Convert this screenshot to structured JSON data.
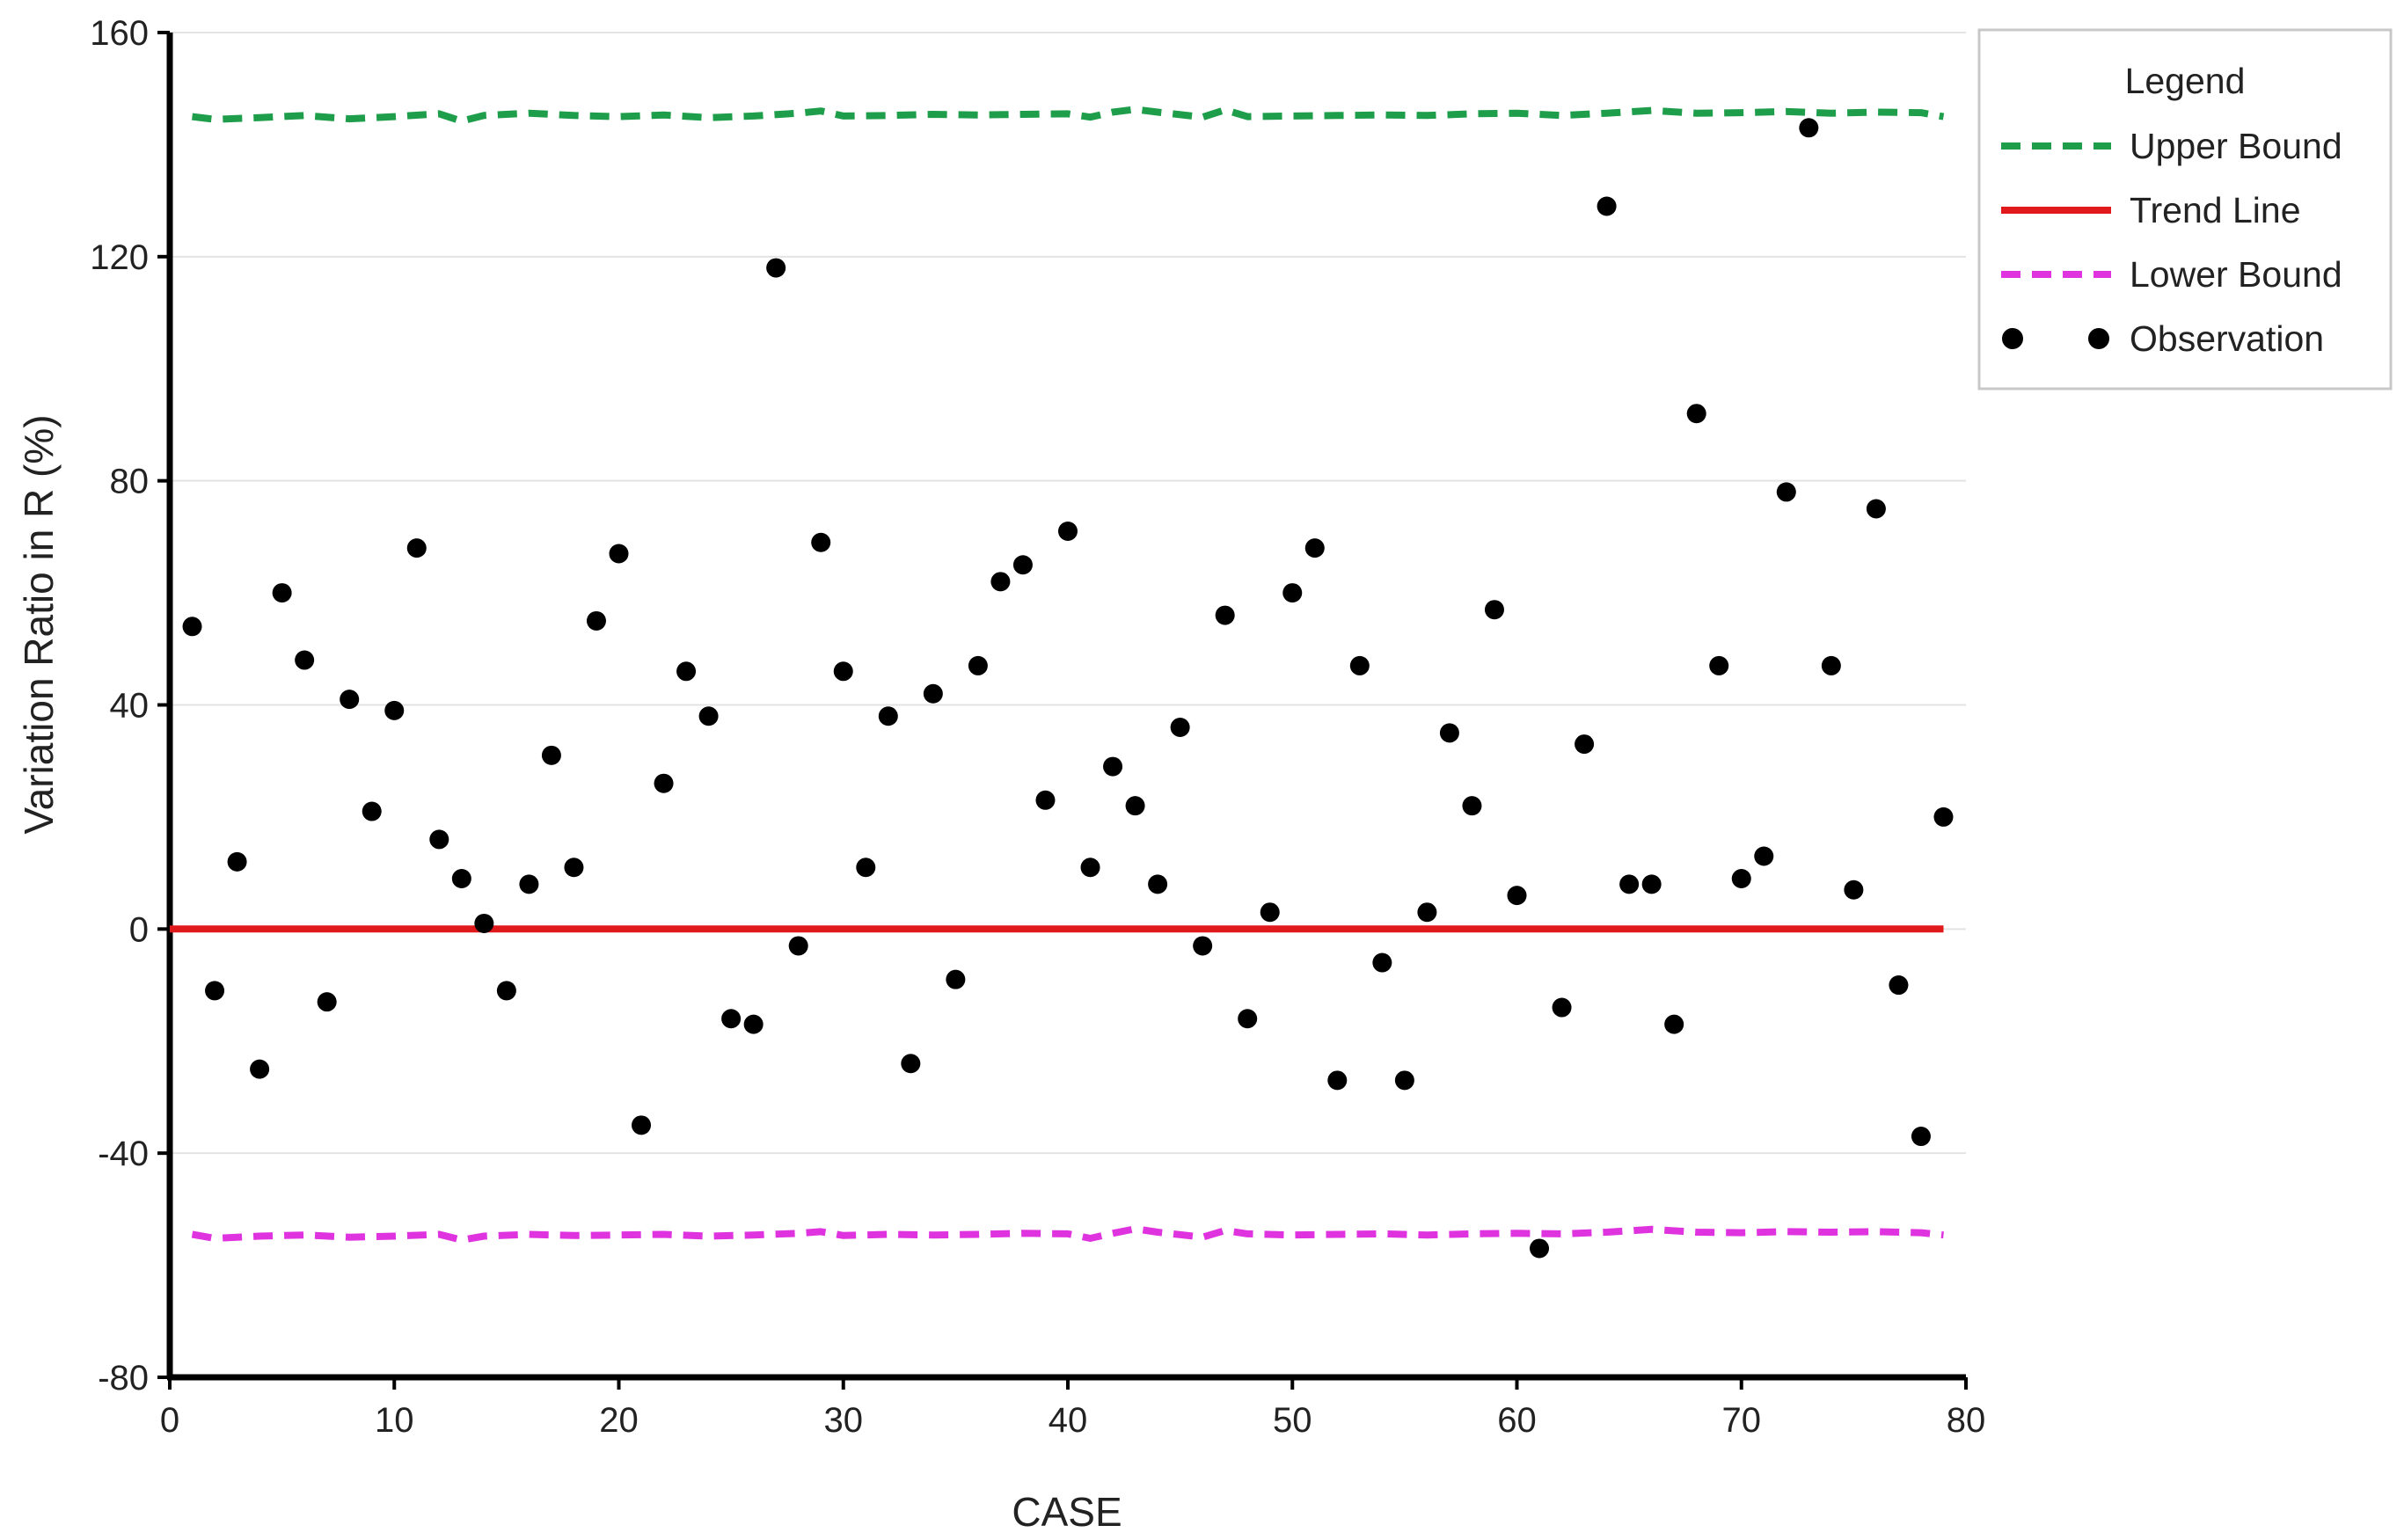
{
  "chart_data": {
    "type": "scatter",
    "xlabel": "CASE",
    "ylabel": "Variation Ratio in R (%)",
    "xlim": [
      0,
      80
    ],
    "ylim": [
      -80,
      160
    ],
    "x_ticks": [
      0,
      10,
      20,
      30,
      40,
      50,
      60,
      70,
      80
    ],
    "y_ticks": [
      -80,
      -40,
      0,
      40,
      80,
      120,
      160
    ],
    "grid": "horizontal",
    "legend": {
      "title": "Legend",
      "placement": "top-right",
      "entries": [
        "Upper Bound",
        "Trend Line",
        "Lower Bound",
        "Observation"
      ]
    },
    "series": [
      {
        "name": "Upper Bound",
        "style": "dashed-line",
        "color": "#1e9e4a",
        "x": [
          1,
          2,
          4,
          6,
          8,
          10,
          12,
          13,
          14,
          16,
          18,
          20,
          22,
          24,
          26,
          28,
          29,
          30,
          32,
          34,
          36,
          38,
          40,
          41,
          42,
          43,
          44,
          46,
          47,
          48,
          50,
          52,
          54,
          56,
          58,
          60,
          62,
          64,
          66,
          68,
          70,
          72,
          74,
          76,
          78,
          79
        ],
        "y": [
          145,
          144.5,
          144.8,
          145.2,
          144.6,
          145,
          145.5,
          144.2,
          145.2,
          145.6,
          145.2,
          145,
          145.3,
          144.8,
          145.1,
          145.6,
          146,
          145.1,
          145.2,
          145.4,
          145.3,
          145.4,
          145.5,
          144.9,
          145.8,
          146.3,
          145.8,
          144.9,
          146.2,
          145,
          145.1,
          145.2,
          145.3,
          145.2,
          145.5,
          145.6,
          145.2,
          145.6,
          146.1,
          145.6,
          145.7,
          145.9,
          145.6,
          145.8,
          145.7,
          145
        ]
      },
      {
        "name": "Trend Line",
        "style": "solid-line",
        "color": "#e0191c",
        "x": [
          0,
          79
        ],
        "y": [
          0,
          0
        ]
      },
      {
        "name": "Lower Bound",
        "style": "dashed-line",
        "color": "#e033e0",
        "x": [
          1,
          2,
          4,
          6,
          8,
          10,
          12,
          13,
          14,
          16,
          18,
          20,
          22,
          24,
          26,
          28,
          29,
          30,
          32,
          34,
          36,
          38,
          40,
          41,
          42,
          43,
          44,
          46,
          47,
          48,
          50,
          52,
          54,
          56,
          58,
          60,
          62,
          64,
          66,
          68,
          70,
          72,
          74,
          76,
          78,
          79
        ],
        "y": [
          -54.5,
          -55.2,
          -54.8,
          -54.6,
          -55,
          -54.8,
          -54.5,
          -55.5,
          -54.8,
          -54.5,
          -54.7,
          -54.6,
          -54.5,
          -54.8,
          -54.6,
          -54.3,
          -54,
          -54.7,
          -54.5,
          -54.6,
          -54.5,
          -54.3,
          -54.4,
          -55.2,
          -54.3,
          -53.5,
          -54.1,
          -55,
          -53.8,
          -54.4,
          -54.6,
          -54.5,
          -54.4,
          -54.6,
          -54.4,
          -54.3,
          -54.4,
          -54.1,
          -53.6,
          -54.1,
          -54.2,
          -54,
          -54.1,
          -54,
          -54.2,
          -54.6
        ]
      },
      {
        "name": "Observation",
        "style": "markers",
        "color": "#000000",
        "x": [
          1,
          2,
          3,
          4,
          5,
          6,
          7,
          8,
          9,
          10,
          11,
          12,
          13,
          14,
          15,
          16,
          17,
          18,
          19,
          20,
          21,
          22,
          23,
          24,
          25,
          26,
          27,
          28,
          29,
          30,
          31,
          32,
          33,
          34,
          35,
          36,
          37,
          38,
          39,
          40,
          41,
          42,
          43,
          44,
          45,
          46,
          47,
          48,
          49,
          50,
          51,
          52,
          53,
          54,
          55,
          56,
          57,
          58,
          59,
          60,
          61,
          62,
          63,
          64,
          65,
          66,
          67,
          68,
          69,
          70,
          71,
          72,
          73,
          74,
          75,
          76,
          77,
          78,
          79
        ],
        "y": [
          54,
          -11,
          12,
          -25,
          60,
          48,
          -13,
          41,
          21,
          39,
          68,
          16,
          9,
          1,
          -11,
          8,
          31,
          11,
          55,
          67,
          -35,
          26,
          46,
          38,
          -16,
          -17,
          118,
          -3,
          69,
          46,
          11,
          38,
          -24,
          42,
          -9,
          47,
          62,
          65,
          23,
          71,
          11,
          29,
          22,
          8,
          36,
          -3,
          56,
          -16,
          3,
          60,
          68,
          -27,
          47,
          -6,
          -27,
          3,
          35,
          22,
          57,
          6,
          -57,
          -14,
          33,
          129,
          8,
          8,
          -17,
          92,
          47,
          9,
          13,
          78,
          143,
          47,
          7,
          75,
          -10,
          -37,
          20
        ]
      }
    ]
  }
}
